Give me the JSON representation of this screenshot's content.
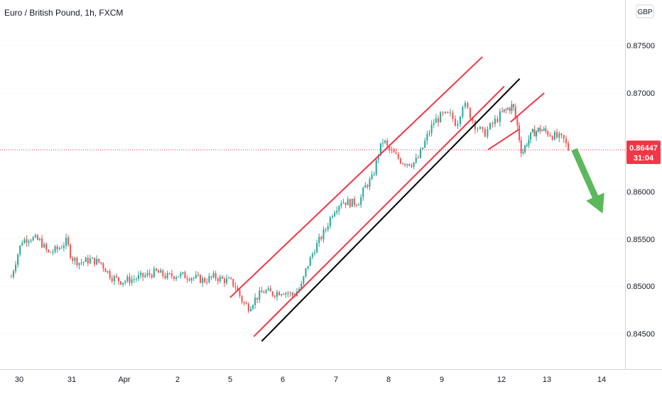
{
  "title": "Euro / British Pound, 1h, FXCM",
  "currency": "GBP",
  "colors": {
    "up": "#26a69a",
    "down": "#ef5350",
    "channel": "#f23645",
    "support": "#000000",
    "arrow": "#5cb85c",
    "price_line": "#f23645",
    "grid": "#e0e3eb",
    "axis": "#d1d4dc"
  },
  "price_label": {
    "value": "0.86447",
    "countdown": "31:04"
  },
  "chart_data": {
    "type": "candlestick",
    "title": "Euro / British Pound, 1h, FXCM",
    "x_ticks": [
      "30",
      "31",
      "Apr",
      "2",
      "5",
      "6",
      "7",
      "8",
      "9",
      "12",
      "13",
      "14"
    ],
    "x_tick_index": [
      0,
      1,
      2,
      3,
      4,
      5,
      6,
      7,
      8,
      9,
      10,
      11
    ],
    "y_ticks": [
      "0.84500",
      "0.85000",
      "0.85500",
      "0.86000",
      "0.86500",
      "0.87000",
      "0.87500"
    ],
    "ylim": [
      0.8425,
      0.878
    ],
    "xlim": [
      -0.15,
      11.35
    ],
    "last_price": 0.86447,
    "series": [
      {
        "x": -0.15,
        "y": 0.851
      },
      {
        "x": -0.05,
        "y": 0.853
      },
      {
        "x": 0.05,
        "y": 0.8548
      },
      {
        "x": 0.2,
        "y": 0.8552
      },
      {
        "x": 0.4,
        "y": 0.8548
      },
      {
        "x": 0.55,
        "y": 0.8535
      },
      {
        "x": 0.75,
        "y": 0.854
      },
      {
        "x": 0.9,
        "y": 0.8548
      },
      {
        "x": 1.0,
        "y": 0.853
      },
      {
        "x": 1.15,
        "y": 0.8525
      },
      {
        "x": 1.35,
        "y": 0.8528
      },
      {
        "x": 1.55,
        "y": 0.8525
      },
      {
        "x": 1.75,
        "y": 0.851
      },
      {
        "x": 1.95,
        "y": 0.8505
      },
      {
        "x": 2.2,
        "y": 0.8508
      },
      {
        "x": 2.45,
        "y": 0.8512
      },
      {
        "x": 2.6,
        "y": 0.8515
      },
      {
        "x": 2.8,
        "y": 0.851
      },
      {
        "x": 3.0,
        "y": 0.8512
      },
      {
        "x": 3.25,
        "y": 0.851
      },
      {
        "x": 3.5,
        "y": 0.8506
      },
      {
        "x": 3.7,
        "y": 0.851
      },
      {
        "x": 3.85,
        "y": 0.8507
      },
      {
        "x": 4.0,
        "y": 0.8505
      },
      {
        "x": 4.1,
        "y": 0.85
      },
      {
        "x": 4.25,
        "y": 0.8482
      },
      {
        "x": 4.35,
        "y": 0.8478
      },
      {
        "x": 4.5,
        "y": 0.8488
      },
      {
        "x": 4.65,
        "y": 0.8495
      },
      {
        "x": 4.8,
        "y": 0.8492
      },
      {
        "x": 5.0,
        "y": 0.8495
      },
      {
        "x": 5.2,
        "y": 0.849
      },
      {
        "x": 5.35,
        "y": 0.85
      },
      {
        "x": 5.45,
        "y": 0.852
      },
      {
        "x": 5.6,
        "y": 0.854
      },
      {
        "x": 5.8,
        "y": 0.856
      },
      {
        "x": 5.95,
        "y": 0.858
      },
      {
        "x": 6.1,
        "y": 0.859
      },
      {
        "x": 6.3,
        "y": 0.8588
      },
      {
        "x": 6.45,
        "y": 0.859
      },
      {
        "x": 6.55,
        "y": 0.8605
      },
      {
        "x": 6.7,
        "y": 0.8615
      },
      {
        "x": 6.8,
        "y": 0.864
      },
      {
        "x": 6.9,
        "y": 0.8655
      },
      {
        "x": 7.0,
        "y": 0.8645
      },
      {
        "x": 7.1,
        "y": 0.864
      },
      {
        "x": 7.25,
        "y": 0.8632
      },
      {
        "x": 7.45,
        "y": 0.863
      },
      {
        "x": 7.55,
        "y": 0.8635
      },
      {
        "x": 7.7,
        "y": 0.8655
      },
      {
        "x": 7.85,
        "y": 0.8672
      },
      {
        "x": 8.0,
        "y": 0.8678
      },
      {
        "x": 8.15,
        "y": 0.8678
      },
      {
        "x": 8.25,
        "y": 0.867
      },
      {
        "x": 8.35,
        "y": 0.869
      },
      {
        "x": 8.45,
        "y": 0.8682
      },
      {
        "x": 8.55,
        "y": 0.867
      },
      {
        "x": 8.7,
        "y": 0.866
      },
      {
        "x": 8.85,
        "y": 0.867
      },
      {
        "x": 9.0,
        "y": 0.868
      },
      {
        "x": 9.15,
        "y": 0.8685
      },
      {
        "x": 9.25,
        "y": 0.8688
      },
      {
        "x": 9.35,
        "y": 0.8668
      },
      {
        "x": 9.45,
        "y": 0.864
      },
      {
        "x": 9.55,
        "y": 0.8652
      },
      {
        "x": 9.7,
        "y": 0.8662
      },
      {
        "x": 9.85,
        "y": 0.8665
      },
      {
        "x": 10.0,
        "y": 0.8662
      },
      {
        "x": 10.15,
        "y": 0.8658
      },
      {
        "x": 10.3,
        "y": 0.8655
      },
      {
        "x": 10.4,
        "y": 0.86447
      }
    ],
    "drawings": [
      {
        "kind": "line",
        "role": "channel-upper",
        "x1": 4.0,
        "y1": 0.8488,
        "x2": 8.68,
        "y2": 0.8738
      },
      {
        "kind": "line",
        "role": "channel-lower",
        "x1": 4.45,
        "y1": 0.8447,
        "x2": 9.06,
        "y2": 0.8707
      },
      {
        "kind": "line",
        "role": "support",
        "x1": 4.6,
        "y1": 0.8442,
        "x2": 9.4,
        "y2": 0.8715
      },
      {
        "kind": "line",
        "role": "small-channel-upper",
        "x1": 9.2,
        "y1": 0.8672,
        "x2": 9.94,
        "y2": 0.87
      },
      {
        "kind": "line",
        "role": "small-channel-lower",
        "x1": 8.78,
        "y1": 0.8645,
        "x2": 9.39,
        "y2": 0.8665
      },
      {
        "kind": "arrow",
        "role": "forecast-down",
        "x1": 10.5,
        "y1": 0.8645,
        "x2": 11.02,
        "y2": 0.8577
      }
    ]
  }
}
